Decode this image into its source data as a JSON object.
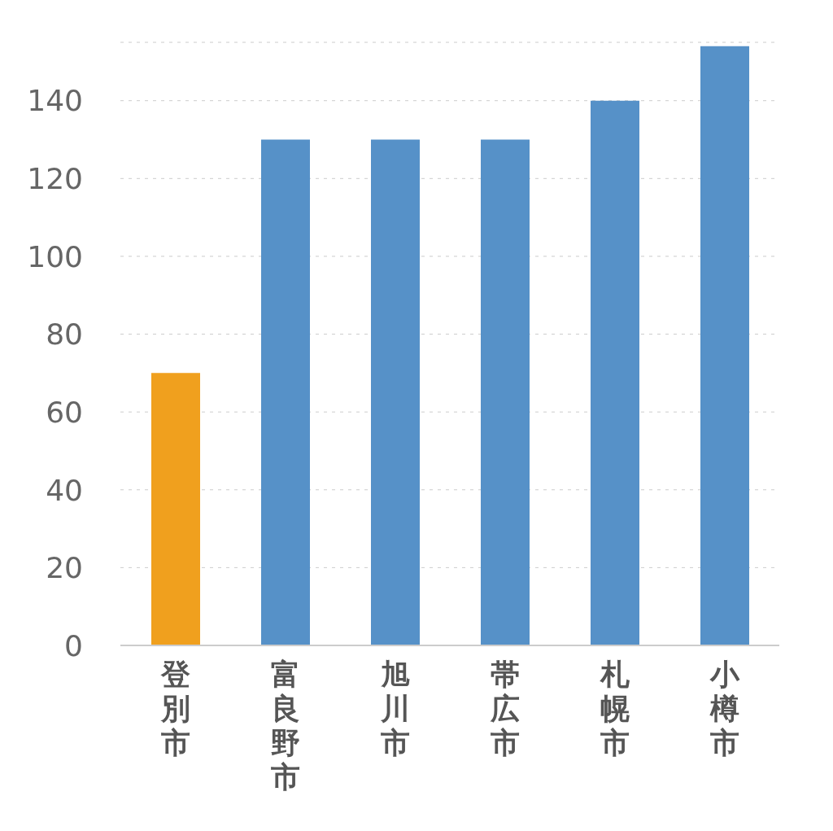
{
  "chart_data": {
    "type": "bar",
    "categories": [
      "登別市",
      "富良野市",
      "旭川市",
      "帯広市",
      "札幌市",
      "小樽市"
    ],
    "values": [
      70,
      130,
      130,
      130,
      140,
      154
    ],
    "colors": [
      "#f0a01e",
      "#5691c8",
      "#5691c8",
      "#5691c8",
      "#5691c8",
      "#5691c8"
    ],
    "ylim": [
      0,
      155
    ],
    "yticks": [
      0,
      20,
      40,
      60,
      80,
      100,
      120,
      140
    ],
    "grid": "y",
    "legend": false
  }
}
